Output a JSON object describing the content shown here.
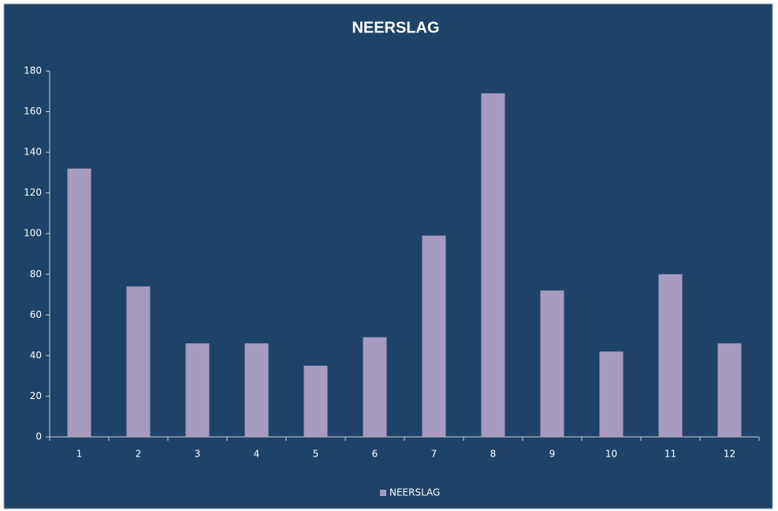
{
  "chart_data": {
    "type": "bar",
    "title": "NEERSLAG",
    "categories": [
      "1",
      "2",
      "3",
      "4",
      "5",
      "6",
      "7",
      "8",
      "9",
      "10",
      "11",
      "12"
    ],
    "series": [
      {
        "name": "NEERSLAG",
        "color": "#a79bbf",
        "values": [
          132,
          74,
          46,
          46,
          35,
          49,
          99,
          169,
          72,
          42,
          80,
          46
        ]
      }
    ],
    "ylim": [
      0,
      180
    ],
    "yticks": [
      0,
      20,
      40,
      60,
      80,
      100,
      120,
      140,
      160,
      180
    ],
    "grid": false,
    "legend": "bottom"
  }
}
